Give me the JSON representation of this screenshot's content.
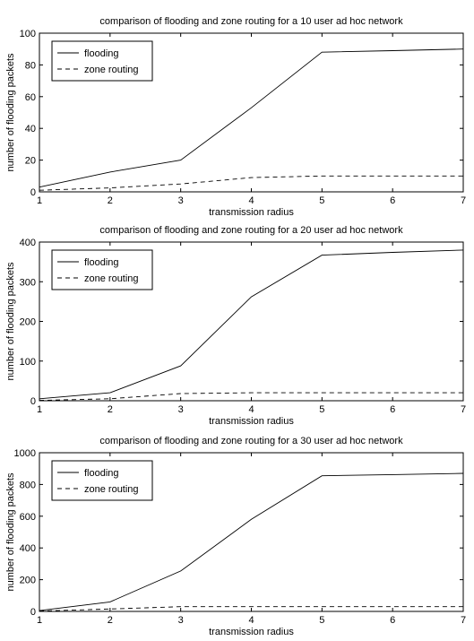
{
  "chart_data": [
    {
      "type": "line",
      "title": "comparison of flooding and zone routing for a 10 user ad hoc network",
      "xlabel": "transmission radius",
      "ylabel": "number of flooding packets",
      "x": [
        1,
        2,
        3,
        4,
        5,
        6,
        7
      ],
      "xlim": [
        1,
        7
      ],
      "ylim": [
        0,
        100
      ],
      "xticks": [
        "1",
        "2",
        "3",
        "4",
        "5",
        "6",
        "7"
      ],
      "yticks": [
        "0",
        "20",
        "40",
        "60",
        "80",
        "100"
      ],
      "legend_position": "top-left",
      "series": [
        {
          "name": "flooding",
          "style": "solid",
          "values": [
            3,
            12.5,
            20,
            53,
            88,
            89,
            90
          ]
        },
        {
          "name": "zone routing",
          "style": "dashed",
          "values": [
            1,
            2.5,
            5,
            9,
            10,
            10,
            10
          ]
        }
      ]
    },
    {
      "type": "line",
      "title": "comparison of flooding and zone routing for a 20 user ad hoc network",
      "xlabel": "transmission radius",
      "ylabel": "number of flooding packets",
      "x": [
        1,
        2,
        3,
        4,
        5,
        6,
        7
      ],
      "xlim": [
        1,
        7
      ],
      "ylim": [
        0,
        400
      ],
      "xticks": [
        "1",
        "2",
        "3",
        "4",
        "5",
        "6",
        "7"
      ],
      "yticks": [
        "0",
        "100",
        "200",
        "300",
        "400"
      ],
      "legend_position": "top-left",
      "series": [
        {
          "name": "flooding",
          "style": "solid",
          "values": [
            5,
            20,
            88,
            262,
            367,
            374,
            380
          ]
        },
        {
          "name": "zone routing",
          "style": "dashed",
          "values": [
            1,
            5,
            18,
            20,
            20,
            20,
            20
          ]
        }
      ]
    },
    {
      "type": "line",
      "title": "comparison of flooding and zone routing for a 30  user ad hoc network",
      "xlabel": "transmission radius",
      "ylabel": "number of flooding packets",
      "x": [
        1,
        2,
        3,
        4,
        5,
        6,
        7
      ],
      "xlim": [
        1,
        7
      ],
      "ylim": [
        0,
        1000
      ],
      "xticks": [
        "1",
        "2",
        "3",
        "4",
        "5",
        "6",
        "7"
      ],
      "yticks": [
        "0",
        "200",
        "400",
        "600",
        "800",
        "1000"
      ],
      "legend_position": "top-left",
      "series": [
        {
          "name": "flooding",
          "style": "solid",
          "values": [
            5,
            60,
            255,
            580,
            855,
            862,
            870
          ]
        },
        {
          "name": "zone routing",
          "style": "dashed",
          "values": [
            2,
            15,
            30,
            30,
            30,
            30,
            30
          ]
        }
      ]
    }
  ]
}
